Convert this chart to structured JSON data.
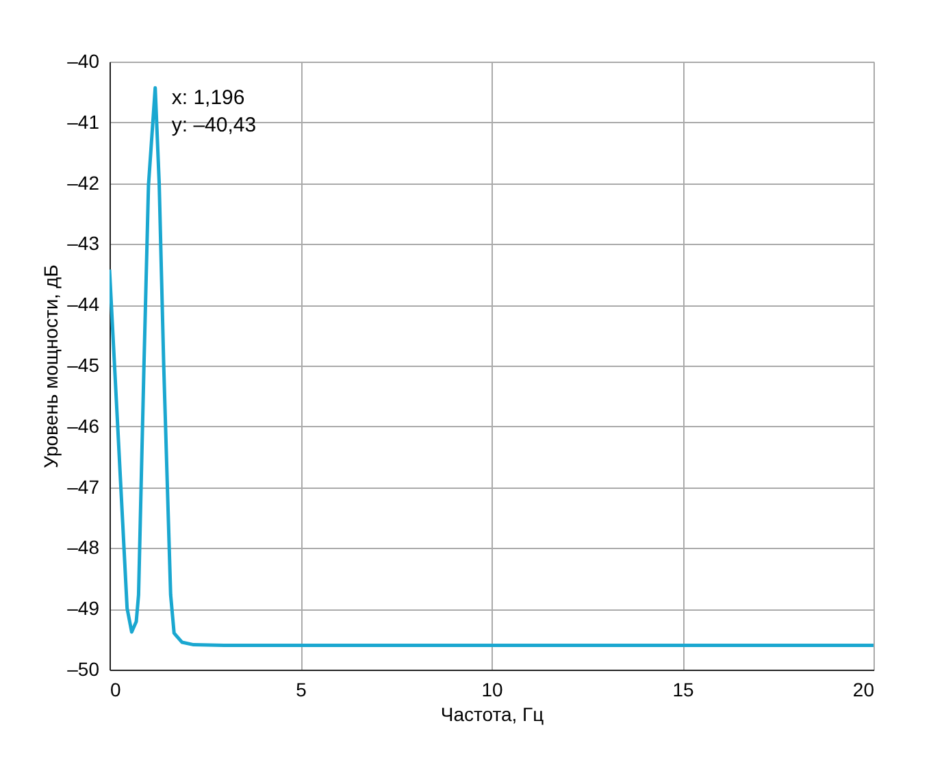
{
  "chart_data": {
    "type": "line",
    "xlabel": "Частота, Гц",
    "ylabel": "Уровень мощности, дБ",
    "xlim": [
      0,
      20
    ],
    "xticks": [
      0,
      5,
      10,
      15,
      20
    ],
    "ylim": [
      -50,
      -40
    ],
    "yticks": [
      {
        "value": -50,
        "label": "–50"
      },
      {
        "value": -49,
        "label": "–49"
      },
      {
        "value": -48,
        "label": "–48"
      },
      {
        "value": -47,
        "label": "–47"
      },
      {
        "value": -46,
        "label": "–46"
      },
      {
        "value": -45,
        "label": "–45"
      },
      {
        "value": -44,
        "label": "–44"
      },
      {
        "value": -43,
        "label": "–43"
      },
      {
        "value": -42,
        "label": "–42"
      },
      {
        "value": -41,
        "label": "–41"
      },
      {
        "value": -40,
        "label": "–40"
      }
    ],
    "grid": true,
    "annotations": [
      {
        "text": "x: 1,196\ny: –40,43",
        "x": 1.196,
        "y": -40.43
      }
    ],
    "series": [
      {
        "color": "#1aa7d0",
        "x": [
          0,
          0.22,
          0.46,
          0.58,
          0.7,
          0.76,
          0.9,
          1.02,
          1.196,
          1.3,
          1.42,
          1.6,
          1.69,
          1.9,
          2.2,
          3,
          5,
          10,
          15,
          20
        ],
        "values": [
          -43.42,
          -46.07,
          -48.99,
          -49.38,
          -49.21,
          -48.77,
          -45.03,
          -42.03,
          -40.43,
          -42.0,
          -45.03,
          -48.77,
          -49.4,
          -49.55,
          -49.59,
          -49.6,
          -49.6,
          -49.6,
          -49.6,
          -49.6
        ]
      }
    ]
  }
}
